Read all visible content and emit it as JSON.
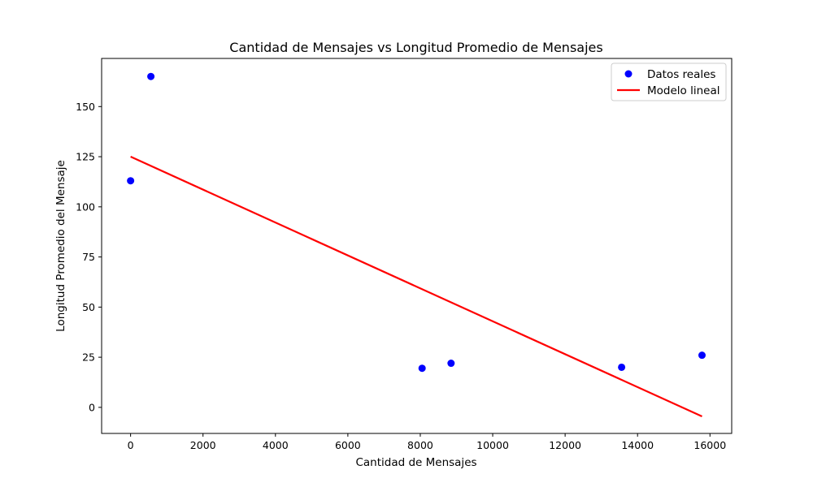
{
  "chart_data": {
    "type": "scatter",
    "title": "Cantidad de Mensajes vs Longitud Promedio de Mensajes",
    "xlabel": "Cantidad de Mensajes",
    "ylabel": "Longitud Promedio del Mensaje",
    "xlim": [
      -800,
      16600
    ],
    "ylim": [
      -13,
      174
    ],
    "xticks": [
      0,
      2000,
      4000,
      6000,
      8000,
      10000,
      12000,
      14000,
      16000
    ],
    "yticks": [
      0,
      25,
      50,
      75,
      100,
      125,
      150
    ],
    "grid": false,
    "legend_position": "top-right",
    "series": [
      {
        "name": "Datos reales",
        "kind": "scatter",
        "color": "#0000ff",
        "points": [
          {
            "x": 0,
            "y": 113
          },
          {
            "x": 560,
            "y": 165
          },
          {
            "x": 8050,
            "y": 19.5
          },
          {
            "x": 8850,
            "y": 22
          },
          {
            "x": 13560,
            "y": 20
          },
          {
            "x": 15780,
            "y": 26
          }
        ]
      },
      {
        "name": "Modelo lineal",
        "kind": "line",
        "color": "#ff0000",
        "points": [
          {
            "x": 0,
            "y": 125
          },
          {
            "x": 15780,
            "y": -4.5
          }
        ]
      }
    ]
  }
}
